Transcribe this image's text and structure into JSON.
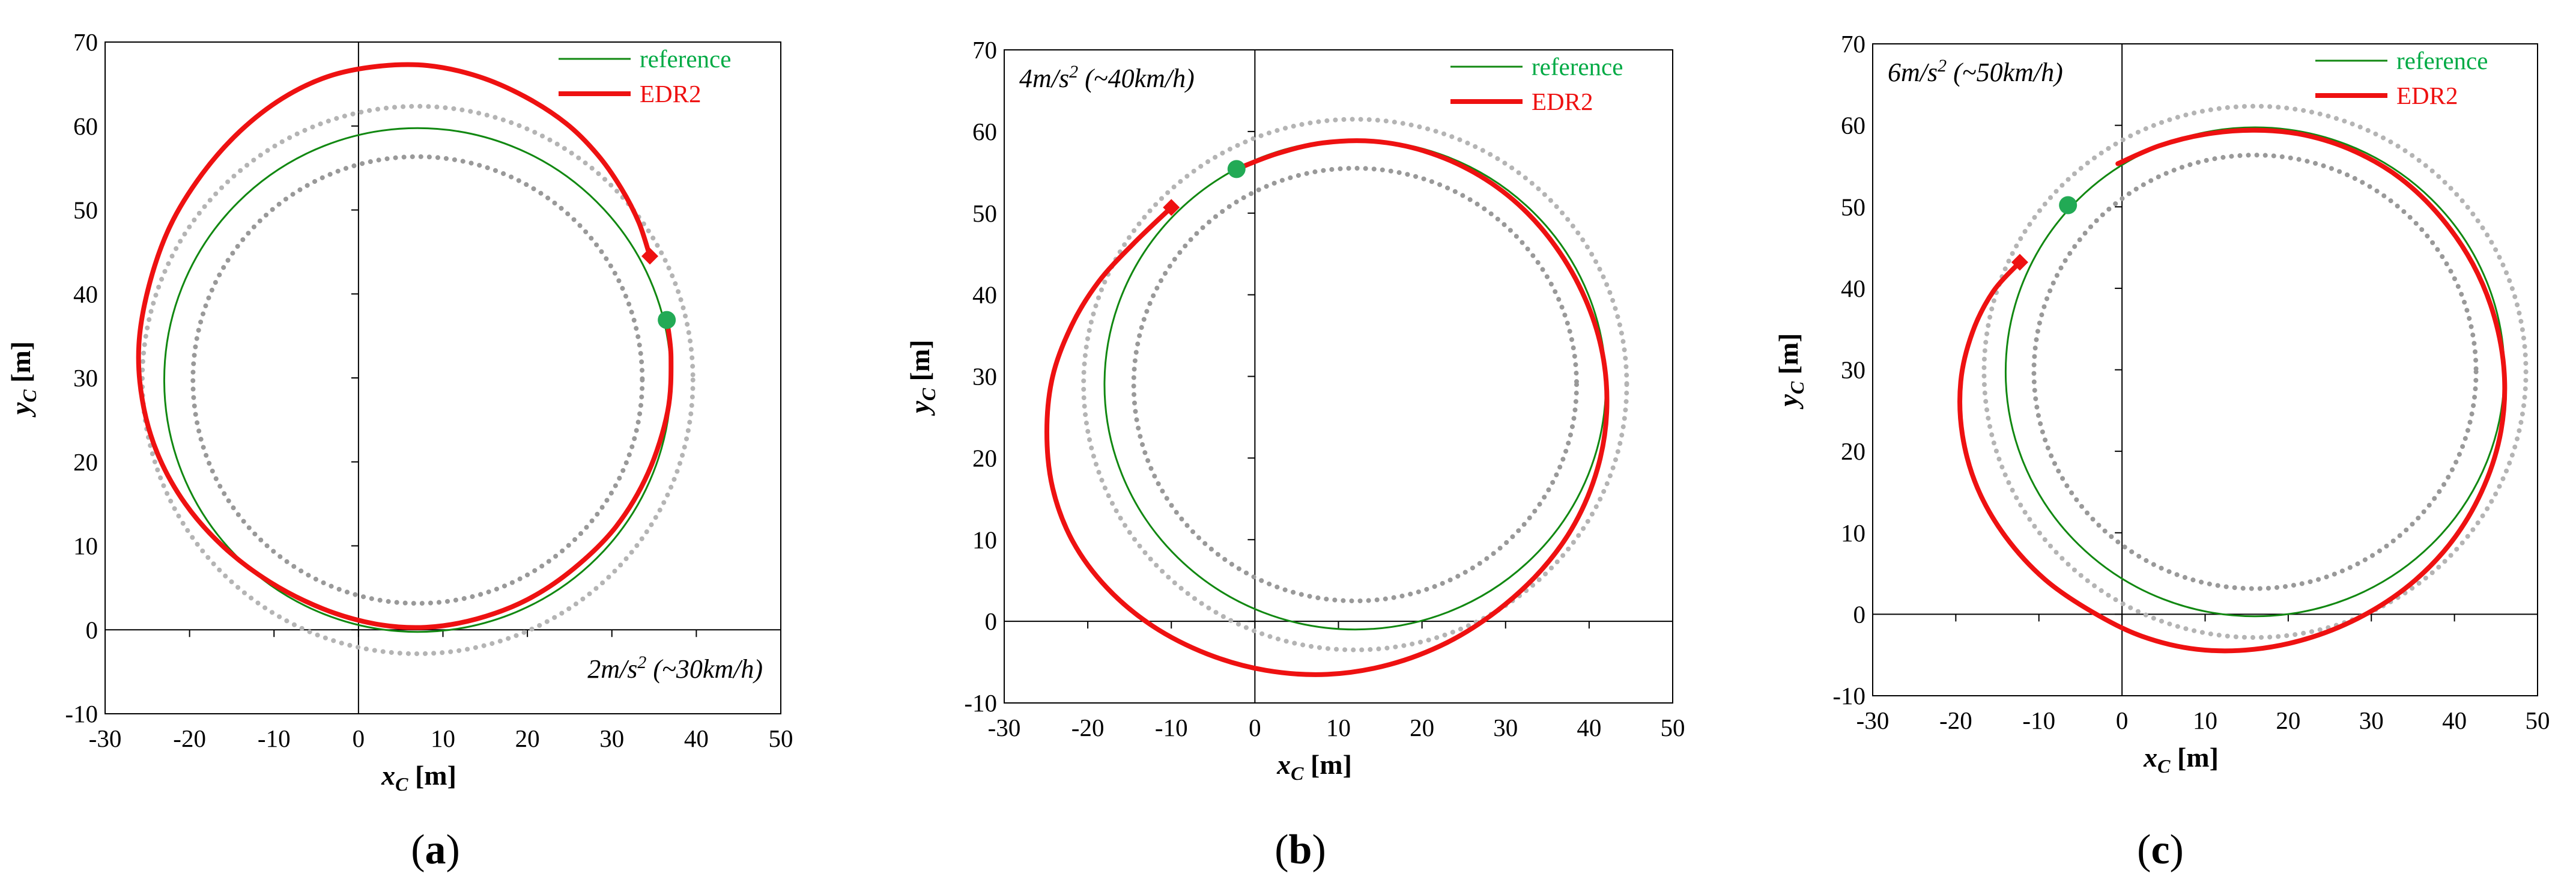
{
  "figure": {
    "panels": [
      {
        "label_open": "(",
        "label_letter": "a",
        "label_close": ")",
        "annotation": "2m/s2 (~30km/h)"
      },
      {
        "label_open": "(",
        "label_letter": "b",
        "label_close": ")",
        "annotation": "4m/s2 (~40km/h)"
      },
      {
        "label_open": "(",
        "label_letter": "c",
        "label_close": ")",
        "annotation": "6m/s2 (~50km/h)"
      }
    ]
  },
  "colors": {
    "reference": "#118811",
    "reference_marker": "#22aa55",
    "edr2": "#ee1111",
    "bounds": "#b4b4b4",
    "bounds_inner": "#999999",
    "legend_reference": "#00aa44",
    "legend_edr2": "#ee1111"
  },
  "chart_data": [
    {
      "type": "line",
      "title": "",
      "xlabel_main": "x",
      "xlabel_sub": "C",
      "xlabel_unit": "[m]",
      "ylabel_main": "y",
      "ylabel_sub": "C",
      "ylabel_unit": "[m]",
      "xlim": [
        -30,
        50
      ],
      "ylim": [
        -10,
        70
      ],
      "xticks": [
        -30,
        -20,
        -10,
        0,
        10,
        20,
        30,
        40,
        50
      ],
      "yticks": [
        -10,
        0,
        10,
        20,
        30,
        40,
        50,
        60,
        70
      ],
      "annotation": {
        "accel": "2m/s",
        "sup": "2",
        "speed": " (~30km/h)",
        "position": "bottom-right"
      },
      "legend": {
        "position": "top-right",
        "entries": [
          "reference",
          "EDR2"
        ]
      },
      "series": [
        {
          "name": "reference",
          "kind": "circle",
          "center": [
            7,
            29.75
          ],
          "radius": 30
        },
        {
          "name": "lane-outer",
          "kind": "circle",
          "center": [
            7,
            29.75
          ],
          "radius": 32.6,
          "style": "dotted"
        },
        {
          "name": "lane-inner",
          "kind": "circle",
          "center": [
            7,
            29.75
          ],
          "radius": 26.6,
          "style": "dotted"
        },
        {
          "name": "EDR2",
          "kind": "path",
          "points": [
            [
              34.5,
              44.5
            ],
            [
              33.2,
              48.5
            ],
            [
              31.1,
              52.6
            ],
            [
              28.3,
              56.6
            ],
            [
              24.6,
              60.3
            ],
            [
              19.7,
              63.5
            ],
            [
              14.2,
              65.9
            ],
            [
              8.2,
              67.2
            ],
            [
              2.2,
              67.1
            ],
            [
              -3.6,
              65.9
            ],
            [
              -9,
              63.3
            ],
            [
              -14,
              59.4
            ],
            [
              -18.5,
              54.3
            ],
            [
              -22.3,
              48.1
            ],
            [
              -24.8,
              41
            ],
            [
              -26,
              34
            ],
            [
              -25.6,
              27.4
            ],
            [
              -23.8,
              21
            ],
            [
              -20.5,
              15
            ],
            [
              -16,
              9.9
            ],
            [
              -10.5,
              5.7
            ],
            [
              -4.2,
              2.5
            ],
            [
              2,
              0.7
            ],
            [
              8,
              0.3
            ],
            [
              14,
              1.3
            ],
            [
              20,
              3.6
            ],
            [
              25.5,
              7.3
            ],
            [
              30.5,
              12.3
            ],
            [
              34.3,
              18.7
            ],
            [
              36.6,
              26
            ],
            [
              37,
              32.5
            ],
            [
              36.5,
              37
            ]
          ]
        },
        {
          "name": "reference-start",
          "kind": "marker",
          "shape": "circle",
          "x": 36.5,
          "y": 36.9
        },
        {
          "name": "edr2-start",
          "kind": "marker",
          "shape": "diamond",
          "x": 34.5,
          "y": 44.5
        }
      ]
    },
    {
      "type": "line",
      "title": "",
      "xlabel_main": "x",
      "xlabel_sub": "C",
      "xlabel_unit": "[m]",
      "ylabel_main": "y",
      "ylabel_sub": "C",
      "ylabel_unit": "[m]",
      "xlim": [
        -30,
        50
      ],
      "ylim": [
        -10,
        70
      ],
      "xticks": [
        -30,
        -20,
        -10,
        0,
        10,
        20,
        30,
        40,
        50
      ],
      "yticks": [
        -10,
        0,
        10,
        20,
        30,
        40,
        50,
        60,
        70
      ],
      "annotation": {
        "accel": "4m/s",
        "sup": "2",
        "speed": " (~40km/h)",
        "position": "top-left"
      },
      "legend": {
        "position": "top-right",
        "entries": [
          "reference",
          "EDR2"
        ]
      },
      "series": [
        {
          "name": "reference",
          "kind": "circle",
          "center": [
            12,
            29
          ],
          "radius": 30
        },
        {
          "name": "lane-outer",
          "kind": "circle",
          "center": [
            12,
            29
          ],
          "radius": 32.5,
          "style": "dotted"
        },
        {
          "name": "lane-inner",
          "kind": "circle",
          "center": [
            12,
            29
          ],
          "radius": 26.5,
          "style": "dotted"
        },
        {
          "name": "EDR2",
          "kind": "path",
          "points": [
            [
              -2.2,
              55.4
            ],
            [
              2.7,
              57.3
            ],
            [
              8.1,
              58.6
            ],
            [
              14.2,
              58.8
            ],
            [
              20.3,
              57.6
            ],
            [
              26.2,
              55
            ],
            [
              31.5,
              51.1
            ],
            [
              36,
              45.9
            ],
            [
              39.5,
              39.6
            ],
            [
              41.6,
              32.8
            ],
            [
              42.1,
              25.6
            ],
            [
              41,
              18.7
            ],
            [
              38.3,
              12
            ],
            [
              34.3,
              6.3
            ],
            [
              29,
              1.3
            ],
            [
              23,
              -2.6
            ],
            [
              16.1,
              -5.3
            ],
            [
              8.7,
              -6.5
            ],
            [
              1.3,
              -6
            ],
            [
              -5.7,
              -4
            ],
            [
              -12.2,
              -0.6
            ],
            [
              -17.7,
              4.1
            ],
            [
              -21.8,
              9.8
            ],
            [
              -24.2,
              16.3
            ],
            [
              -24.9,
              23.2
            ],
            [
              -24.2,
              30
            ],
            [
              -21.9,
              36.3
            ],
            [
              -18.7,
              41.6
            ],
            [
              -14.6,
              46.2
            ],
            [
              -10,
              50.7
            ]
          ]
        },
        {
          "name": "reference-start",
          "kind": "marker",
          "shape": "circle",
          "x": -2.2,
          "y": 55.4
        },
        {
          "name": "edr2-start",
          "kind": "marker",
          "shape": "diamond",
          "x": -10,
          "y": 50.7
        }
      ]
    },
    {
      "type": "line",
      "title": "",
      "xlabel_main": "x",
      "xlabel_sub": "C",
      "xlabel_unit": "[m]",
      "ylabel_main": "y",
      "ylabel_sub": "C",
      "ylabel_unit": "[m]",
      "xlim": [
        -30,
        50
      ],
      "ylim": [
        -10,
        70
      ],
      "xticks": [
        -30,
        -20,
        -10,
        0,
        10,
        20,
        30,
        40,
        50
      ],
      "yticks": [
        -10,
        0,
        10,
        20,
        30,
        40,
        50,
        60,
        70
      ],
      "annotation": {
        "accel": "6m/s",
        "sup": "2",
        "speed": " (~50km/h)",
        "position": "top-left"
      },
      "legend": {
        "position": "top-right",
        "entries": [
          "reference",
          "EDR2"
        ]
      },
      "series": [
        {
          "name": "reference",
          "kind": "circle",
          "center": [
            16,
            29.75
          ],
          "radius": 30
        },
        {
          "name": "lane-outer",
          "kind": "circle",
          "center": [
            16,
            29.75
          ],
          "radius": 32.6,
          "style": "dotted"
        },
        {
          "name": "lane-inner",
          "kind": "circle",
          "center": [
            16,
            29.75
          ],
          "radius": 26.6,
          "style": "dotted"
        },
        {
          "name": "EDR2",
          "kind": "path",
          "points": [
            [
              -0.5,
              55.3
            ],
            [
              4.5,
              57.5
            ],
            [
              10,
              58.9
            ],
            [
              16,
              59.4
            ],
            [
              22,
              58.8
            ],
            [
              28,
              56.8
            ],
            [
              33.5,
              53.5
            ],
            [
              38.3,
              48.8
            ],
            [
              42.2,
              43
            ],
            [
              44.8,
              36.5
            ],
            [
              46,
              29.5
            ],
            [
              45.6,
              22.5
            ],
            [
              43.6,
              15.8
            ],
            [
              40.1,
              9.5
            ],
            [
              35.3,
              4.2
            ],
            [
              29.5,
              0.1
            ],
            [
              22.9,
              -2.8
            ],
            [
              15.9,
              -4.3
            ],
            [
              9,
              -4.3
            ],
            [
              2.4,
              -2.7
            ],
            [
              -3.6,
              0.3
            ],
            [
              -9.3,
              4.3
            ],
            [
              -14,
              9.5
            ],
            [
              -17.4,
              15.5
            ],
            [
              -19.2,
              22
            ],
            [
              -19.4,
              28.6
            ],
            [
              -18,
              34.6
            ],
            [
              -15.5,
              39.6
            ],
            [
              -12.3,
              43.2
            ]
          ]
        },
        {
          "name": "reference-start",
          "kind": "marker",
          "shape": "circle",
          "x": -6.5,
          "y": 50.2
        },
        {
          "name": "edr2-start",
          "kind": "marker",
          "shape": "diamond",
          "x": -12.3,
          "y": 43.2
        }
      ]
    }
  ]
}
